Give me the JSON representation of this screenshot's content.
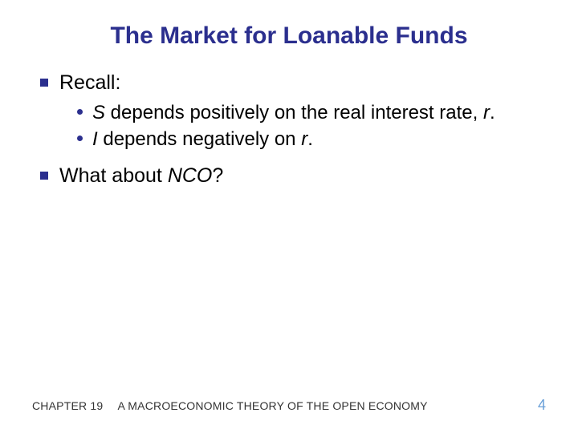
{
  "title": "The Market for Loanable Funds",
  "bullets": {
    "b1": "Recall:",
    "s1_pre": "S",
    "s1_mid": " depends positively on the real interest rate, ",
    "s1_var": "r",
    "s1_post": ".",
    "s2_pre": "I",
    "s2_mid": " depends negatively on ",
    "s2_var": "r",
    "s2_post": ".",
    "b2_pre": "What about ",
    "b2_var": "NCO",
    "b2_post": "?"
  },
  "footer": {
    "chapter": "CHAPTER 19",
    "book": "A MACROECONOMIC THEORY OF THE OPEN ECONOMY",
    "page": "4"
  },
  "colors": {
    "title": "#2b2f8e",
    "bullet": "#2b2f8e",
    "pagenum": "#6aa0d8",
    "background": "#ffffff"
  }
}
